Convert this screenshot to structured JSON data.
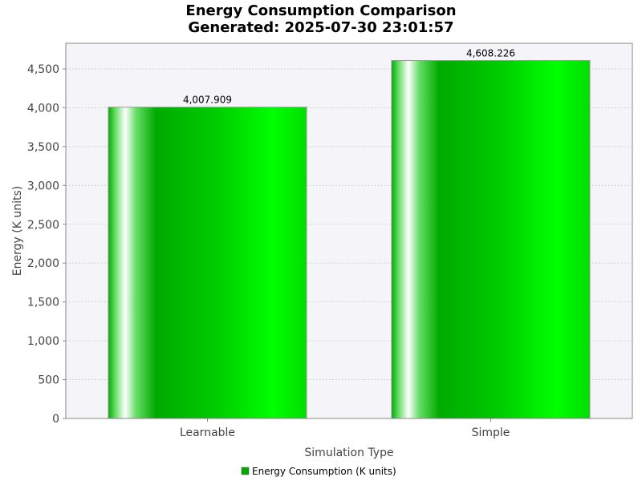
{
  "chart_data": {
    "type": "bar",
    "title": "Energy Consumption Comparison",
    "subtitle": "Generated: 2025-07-30 23:01:57",
    "xlabel": "Simulation Type",
    "ylabel": "Energy (K units)",
    "categories": [
      "Learnable",
      "Simple"
    ],
    "series": [
      {
        "name": "Energy Consumption (K units)",
        "values": [
          4007.909,
          4608.226
        ],
        "value_labels": [
          "4,007.909",
          "4,608.226"
        ]
      }
    ],
    "ylim": [
      0,
      4830
    ],
    "yticks": [
      0,
      500,
      1000,
      1500,
      2000,
      2500,
      3000,
      3500,
      4000,
      4500
    ],
    "ytick_labels": [
      "0",
      "500",
      "1,000",
      "1,500",
      "2,000",
      "2,500",
      "3,000",
      "3,500",
      "4,000",
      "4,500"
    ],
    "grid": true,
    "legend_position": "bottom-center",
    "colors": {
      "bar_dark": "#00aa00",
      "bar_mid": "#00cc00",
      "bar_bright": "#00ff00",
      "bar_highlight": "#ffffff",
      "bar_outline": "#999999",
      "plot_background": "#f4f4f9",
      "plot_border": "#888888",
      "grid": "#cccccc",
      "legend_swatch": "#00aa00"
    }
  }
}
